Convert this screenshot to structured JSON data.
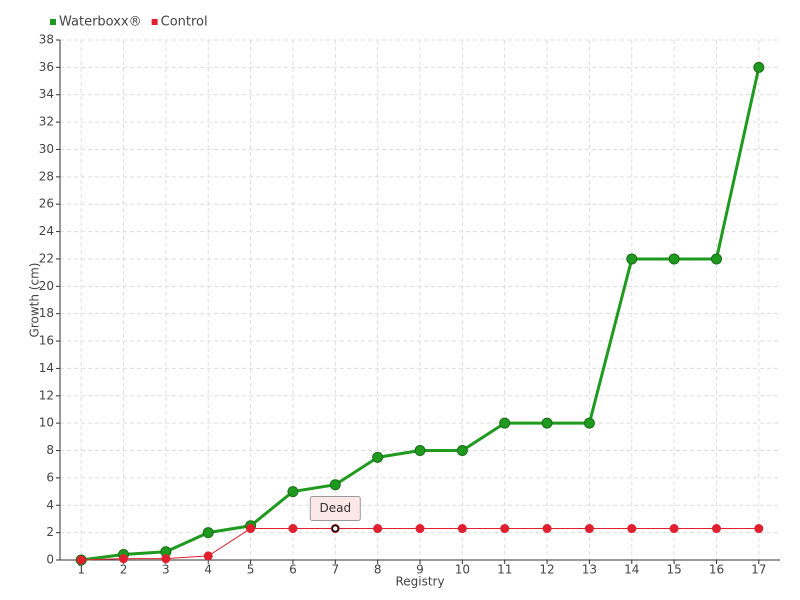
{
  "chart_data": {
    "type": "line",
    "xlabel": "Registry",
    "ylabel": "Growth (cm)",
    "categories": [
      "1",
      "2",
      "3",
      "4",
      "5",
      "6",
      "7",
      "8",
      "9",
      "10",
      "11",
      "12",
      "13",
      "14",
      "15",
      "16",
      "17"
    ],
    "series": [
      {
        "name": "Waterboxx®",
        "color": "#1f9a1f",
        "values": [
          0,
          0.4,
          0.6,
          2,
          2.5,
          5,
          5.5,
          7.5,
          8,
          8,
          10,
          10,
          10,
          22,
          22,
          22,
          36
        ]
      },
      {
        "name": "Control",
        "color": "#e0202e",
        "values": [
          0,
          0.1,
          0.1,
          0.3,
          2.3,
          2.3,
          2.3,
          2.3,
          2.3,
          2.3,
          2.3,
          2.3,
          2.3,
          2.3,
          2.3,
          2.3,
          2.3
        ]
      }
    ],
    "annotations": [
      {
        "text": "Dead",
        "series": "Control",
        "category": "7"
      }
    ],
    "ylim": [
      0,
      38
    ],
    "yticks": [
      0,
      2,
      4,
      6,
      8,
      10,
      12,
      14,
      16,
      18,
      20,
      22,
      24,
      26,
      28,
      30,
      32,
      34,
      36,
      38
    ],
    "grid": true,
    "legend": "top-left"
  }
}
